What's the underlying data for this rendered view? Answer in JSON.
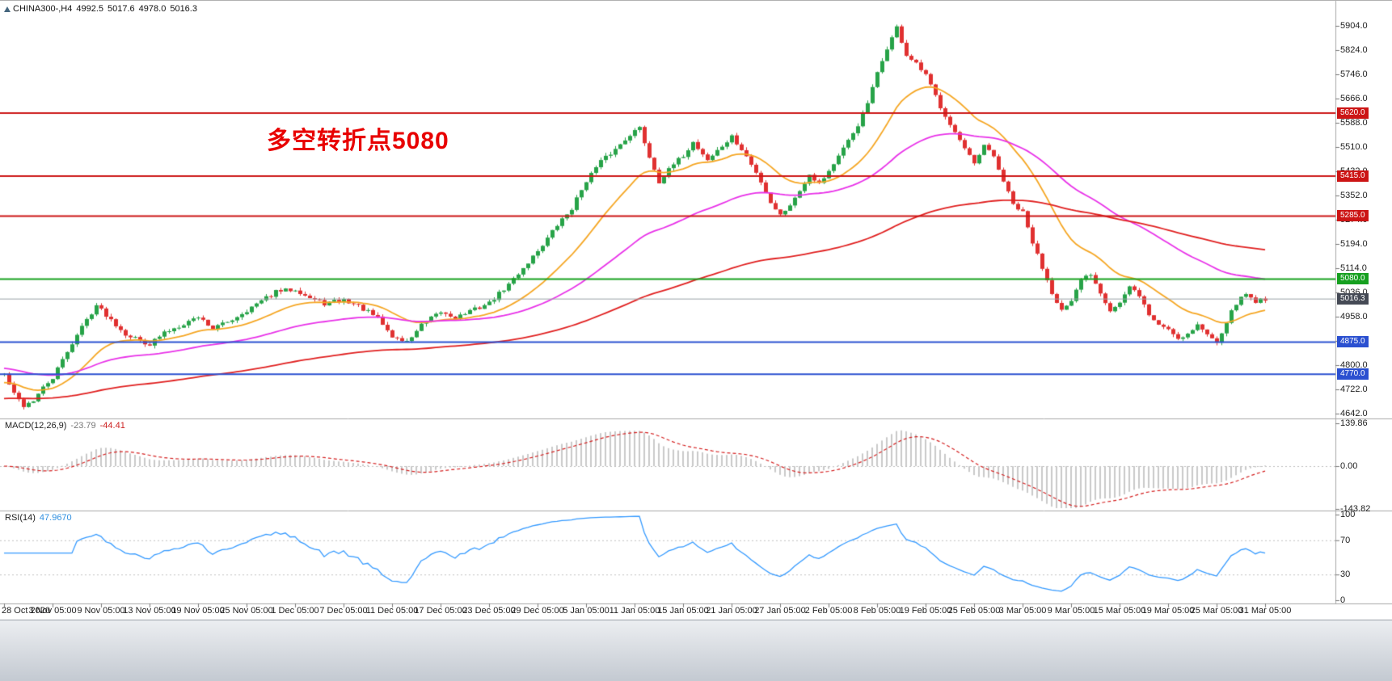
{
  "header": {
    "symbol_timeframe": "CHINA300-,H4",
    "open": "4992.5",
    "high": "5017.6",
    "low": "4978.0",
    "close": "5016.3"
  },
  "annotation": {
    "text": "多空转折点5080",
    "color": "#e80000"
  },
  "chart_data": {
    "type": "candlestick",
    "symbol": "CHINA300-",
    "timeframe": "H4",
    "bars": 261,
    "seed": 42,
    "volatility": 14,
    "price_axis": {
      "min": 4642,
      "max": 5904,
      "labels": [
        "5904.0",
        "5824.0",
        "5746.0",
        "5666.0",
        "5588.0",
        "5510.0",
        "5432.0",
        "5352.0",
        "5274.0",
        "5194.0",
        "5114.0",
        "5036.0",
        "4958.0",
        "4880.0",
        "4800.0",
        "4722.0",
        "4642.0"
      ]
    },
    "x_labels": [
      "28 Oct 2020",
      "3 Nov 05:00",
      "9 Nov 05:00",
      "13 Nov 05:00",
      "19 Nov 05:00",
      "25 Nov 05:00",
      "1 Dec 05:00",
      "7 Dec 05:00",
      "11 Dec 05:00",
      "17 Dec 05:00",
      "23 Dec 05:00",
      "29 Dec 05:00",
      "5 Jan 05:00",
      "11 Jan 05:00",
      "15 Jan 05:00",
      "21 Jan 05:00",
      "27 Jan 05:00",
      "2 Feb 05:00",
      "8 Feb 05:00",
      "19 Feb 05:00",
      "25 Feb 05:00",
      "3 Mar 05:00",
      "9 Mar 05:00",
      "15 Mar 05:00",
      "19 Mar 05:00",
      "25 Mar 05:00",
      "31 Mar 05:00"
    ],
    "bars_per_label": 10,
    "anchors": [
      [
        0,
        4770
      ],
      [
        2,
        4705
      ],
      [
        4,
        4668
      ],
      [
        6,
        4685
      ],
      [
        8,
        4725
      ],
      [
        10,
        4758
      ],
      [
        13,
        4845
      ],
      [
        16,
        4925
      ],
      [
        19,
        4995
      ],
      [
        22,
        4948
      ],
      [
        25,
        4902
      ],
      [
        28,
        4880
      ],
      [
        30,
        4868
      ],
      [
        33,
        4905
      ],
      [
        36,
        4928
      ],
      [
        40,
        4958
      ],
      [
        43,
        4920
      ],
      [
        46,
        4940
      ],
      [
        50,
        4978
      ],
      [
        53,
        5008
      ],
      [
        56,
        5038
      ],
      [
        60,
        5048
      ],
      [
        63,
        5018
      ],
      [
        66,
        5000
      ],
      [
        70,
        5012
      ],
      [
        73,
        4992
      ],
      [
        77,
        4952
      ],
      [
        80,
        4892
      ],
      [
        83,
        4875
      ],
      [
        86,
        4930
      ],
      [
        90,
        4972
      ],
      [
        93,
        4955
      ],
      [
        96,
        4975
      ],
      [
        100,
        5002
      ],
      [
        104,
        5062
      ],
      [
        108,
        5135
      ],
      [
        111,
        5192
      ],
      [
        114,
        5255
      ],
      [
        117,
        5310
      ],
      [
        120,
        5402
      ],
      [
        123,
        5462
      ],
      [
        126,
        5502
      ],
      [
        129,
        5552
      ],
      [
        131,
        5572
      ],
      [
        133,
        5478
      ],
      [
        135,
        5398
      ],
      [
        138,
        5452
      ],
      [
        140,
        5482
      ],
      [
        142,
        5525
      ],
      [
        145,
        5468
      ],
      [
        148,
        5512
      ],
      [
        150,
        5542
      ],
      [
        153,
        5478
      ],
      [
        156,
        5398
      ],
      [
        158,
        5330
      ],
      [
        160,
        5288
      ],
      [
        163,
        5342
      ],
      [
        166,
        5422
      ],
      [
        168,
        5392
      ],
      [
        170,
        5432
      ],
      [
        173,
        5502
      ],
      [
        176,
        5582
      ],
      [
        178,
        5652
      ],
      [
        180,
        5748
      ],
      [
        182,
        5832
      ],
      [
        184,
        5898
      ],
      [
        186,
        5808
      ],
      [
        188,
        5778
      ],
      [
        190,
        5742
      ],
      [
        193,
        5642
      ],
      [
        196,
        5558
      ],
      [
        198,
        5502
      ],
      [
        200,
        5452
      ],
      [
        202,
        5512
      ],
      [
        204,
        5478
      ],
      [
        206,
        5398
      ],
      [
        208,
        5322
      ],
      [
        210,
        5295
      ],
      [
        212,
        5198
      ],
      [
        214,
        5118
      ],
      [
        216,
        5038
      ],
      [
        218,
        4978
      ],
      [
        220,
        5002
      ],
      [
        222,
        5078
      ],
      [
        224,
        5098
      ],
      [
        226,
        5038
      ],
      [
        228,
        4978
      ],
      [
        230,
        5002
      ],
      [
        232,
        5052
      ],
      [
        234,
        5028
      ],
      [
        236,
        4962
      ],
      [
        238,
        4932
      ],
      [
        240,
        4918
      ],
      [
        242,
        4888
      ],
      [
        244,
        4902
      ],
      [
        246,
        4932
      ],
      [
        248,
        4898
      ],
      [
        250,
        4878
      ],
      [
        252,
        4942
      ],
      [
        254,
        5002
      ],
      [
        256,
        5032
      ],
      [
        258,
        5008
      ],
      [
        260,
        5016
      ]
    ],
    "candle_colors": {
      "up": "#27a348",
      "down": "#e03030"
    },
    "moving_averages": [
      {
        "name": "fast",
        "period": 20,
        "seed_value": 4740,
        "color": "#f5a623"
      },
      {
        "name": "medium",
        "period": 60,
        "seed_value": 4790,
        "color": "#e832e8"
      },
      {
        "name": "slow",
        "period": 160,
        "seed_value": 4690,
        "color": "#e02020"
      }
    ],
    "horizontal_lines": [
      {
        "price": 5620.0,
        "label": "5620.0",
        "color": "#cc1515",
        "width": 2
      },
      {
        "price": 5415.0,
        "label": "5415.0",
        "color": "#cc1515",
        "width": 2
      },
      {
        "price": 5285.0,
        "label": "5285.0",
        "color": "#cc1515",
        "width": 2
      },
      {
        "price": 5080.0,
        "label": "5080.0",
        "color": "#16a01f",
        "width": 2
      },
      {
        "price": 4875.0,
        "label": "4875.0",
        "color": "#2b50d0",
        "width": 2
      },
      {
        "price": 4770.0,
        "label": "4770.0",
        "color": "#2b50d0",
        "width": 2
      }
    ],
    "current_price": {
      "value": 5016.3,
      "label": "5016.3",
      "line_color": "#9aa0a6",
      "badge_color": "#454a55"
    },
    "macd": {
      "title": "MACD(12,26,9)",
      "main_value": "-23.79",
      "signal_value": "-44.41",
      "fast": 12,
      "slow": 26,
      "signal": 9,
      "axis_labels": [
        "139.86",
        "0.00",
        "-143.82"
      ],
      "histogram_color": "#c9c9c9",
      "signal_color": "#d42020"
    },
    "rsi": {
      "title": "RSI(14)",
      "value": "47.9670",
      "period": 14,
      "axis_labels": [
        "100",
        "70",
        "30",
        "0"
      ],
      "levels": [
        70,
        30
      ],
      "line_color": "#3399ff"
    }
  }
}
